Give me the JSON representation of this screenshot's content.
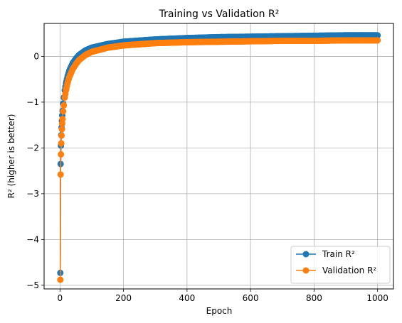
{
  "chart_data": {
    "type": "line",
    "title": "Training vs Validation R²",
    "xlabel": "Epoch",
    "ylabel": "R² (higher is better)",
    "xlim": [
      -50,
      1050
    ],
    "ylim": [
      -5.08,
      0.72
    ],
    "xticks": [
      0,
      200,
      400,
      600,
      800,
      1000
    ],
    "yticks": [
      -5,
      -4,
      -3,
      -2,
      -1,
      0
    ],
    "grid": true,
    "legend_position": "lower-right",
    "series": [
      {
        "name": "Train R²",
        "color": "#1f77b4",
        "marker": "circle",
        "x": [
          1,
          2,
          3,
          4,
          5,
          6,
          7,
          8,
          10,
          12,
          15,
          20,
          25,
          30,
          40,
          50,
          60,
          80,
          100,
          150,
          200,
          300,
          400,
          500,
          600,
          700,
          800,
          900,
          1000
        ],
        "values": [
          -4.73,
          -2.35,
          -1.95,
          -1.72,
          -1.55,
          -1.41,
          -1.29,
          -1.19,
          -1.03,
          -0.9,
          -0.74,
          -0.55,
          -0.41,
          -0.3,
          -0.15,
          -0.05,
          0.03,
          0.13,
          0.19,
          0.27,
          0.32,
          0.37,
          0.4,
          0.42,
          0.43,
          0.44,
          0.45,
          0.46,
          0.46
        ]
      },
      {
        "name": "Validation R²",
        "color": "#ff7f0e",
        "marker": "circle",
        "x": [
          1,
          2,
          3,
          4,
          5,
          6,
          7,
          8,
          10,
          12,
          15,
          20,
          25,
          30,
          40,
          50,
          60,
          80,
          100,
          150,
          200,
          300,
          400,
          500,
          600,
          700,
          800,
          900,
          1000
        ],
        "values": [
          -4.88,
          -2.58,
          -2.14,
          -1.9,
          -1.73,
          -1.59,
          -1.47,
          -1.37,
          -1.2,
          -1.07,
          -0.9,
          -0.7,
          -0.55,
          -0.44,
          -0.28,
          -0.17,
          -0.08,
          0.03,
          0.1,
          0.19,
          0.24,
          0.29,
          0.31,
          0.32,
          0.33,
          0.34,
          0.34,
          0.35,
          0.35
        ]
      }
    ]
  }
}
